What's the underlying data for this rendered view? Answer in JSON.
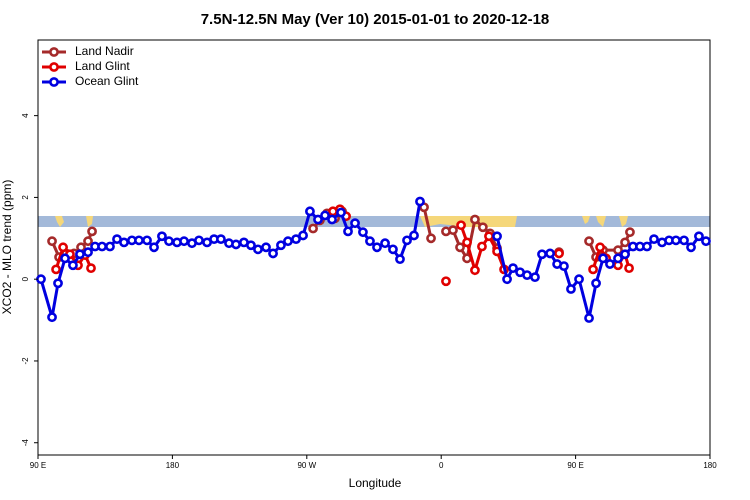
{
  "chart_data": {
    "type": "line",
    "title": "7.5N-12.5N May (Ver 10)   2015-01-01 to 2020-12-18",
    "x_label": "Longitude",
    "y_label": "XCO2 - MLO trend (ppm)",
    "xlim": [
      90,
      540
    ],
    "ylim": [
      -4.3,
      5.85
    ],
    "xticks": [
      {
        "value": 90,
        "label": "90 E"
      },
      180,
      {
        "value": 270,
        "label": "90 W"
      },
      {
        "value": 360,
        "label": "0"
      },
      {
        "value": 450,
        "label": "90 E"
      },
      {
        "value": 540,
        "label": "180"
      }
    ],
    "yticks": [
      -4,
      -2,
      0,
      2,
      4
    ],
    "legend": "top-left",
    "series": [
      {
        "name": "Land Nadir",
        "color": "#a52a2a",
        "x": [
          99.4,
          104.1,
          108.8,
          114.1,
          118.8,
          123.5,
          126.2,
          null,
          274.2,
          278.8,
          283.5,
          288.9,
          293.6,
          null,
          348.5,
          353.2,
          null,
          363.2,
          367.9,
          372.6,
          377.3,
          382.6,
          387.9,
          392.7,
          397.4,
          null,
          438.9,
          null,
          459.0,
          463.7,
          468.4,
          478.4,
          483.1,
          486.4
        ],
        "values": [
          0.93,
          0.54,
          0.63,
          0.63,
          0.78,
          0.93,
          1.17,
          null,
          1.24,
          1.44,
          1.61,
          1.49,
          1.66,
          null,
          1.76,
          1.0,
          null,
          1.17,
          1.2,
          0.78,
          0.51,
          1.46,
          1.27,
          1.12,
          0.76,
          null,
          0.66,
          null,
          0.93,
          0.54,
          0.71,
          0.71,
          0.9,
          1.15
        ]
      },
      {
        "name": "Land Glint",
        "color": "#e00000",
        "x": [
          102.1,
          106.8,
          111.4,
          116.8,
          121.5,
          125.5,
          null,
          287.5,
          292.2,
          296.3,
          null,
          363.2,
          null,
          373.3,
          377.3,
          382.6,
          387.3,
          392.0,
          397.4,
          402.1,
          null,
          438.9,
          null,
          461.7,
          466.4,
          470.4,
          478.4,
          483.1,
          485.8
        ],
        "values": [
          0.24,
          0.78,
          0.61,
          0.34,
          0.59,
          0.27,
          null,
          1.66,
          1.71,
          1.54,
          null,
          -0.05,
          null,
          1.32,
          0.9,
          0.22,
          0.8,
          1.05,
          0.68,
          0.24,
          null,
          0.63,
          null,
          0.24,
          0.78,
          0.51,
          0.34,
          0.61,
          0.27
        ]
      },
      {
        "name": "Ocean Glint",
        "color": "#0000e0",
        "x": [
          92.0,
          99.4,
          103.4,
          108.1,
          113.4,
          118.1,
          123.5,
          128.2,
          132.9,
          138.2,
          142.9,
          147.6,
          152.9,
          157.6,
          163.0,
          167.7,
          173.0,
          177.7,
          183.1,
          187.8,
          193.1,
          197.8,
          203.2,
          207.9,
          212.5,
          217.9,
          222.6,
          227.9,
          232.6,
          237.3,
          242.7,
          247.4,
          252.7,
          257.4,
          262.8,
          267.5,
          272.1,
          277.5,
          282.2,
          286.9,
          292.9,
          297.6,
          302.3,
          307.6,
          312.3,
          317.0,
          322.4,
          327.7,
          332.4,
          337.1,
          341.8,
          345.8,
          null,
          397.4,
          404.1,
          408.1,
          412.8,
          417.5,
          422.8,
          427.5,
          432.9,
          437.6,
          442.2,
          446.9,
          452.3,
          459.0,
          463.7,
          468.4,
          473.0,
          478.4,
          483.1,
          488.4,
          493.1,
          497.8,
          502.5,
          507.9,
          512.6,
          517.2,
          522.6,
          527.3,
          532.6,
          537.3
        ],
        "values": [
          0.0,
          -0.93,
          -0.1,
          0.51,
          0.34,
          0.61,
          0.66,
          0.8,
          0.8,
          0.8,
          0.98,
          0.9,
          0.95,
          0.95,
          0.95,
          0.78,
          1.05,
          0.93,
          0.9,
          0.93,
          0.88,
          0.95,
          0.9,
          0.98,
          0.98,
          0.88,
          0.85,
          0.9,
          0.83,
          0.73,
          0.78,
          0.63,
          0.83,
          0.93,
          0.98,
          1.07,
          1.66,
          1.46,
          1.56,
          1.46,
          1.63,
          1.17,
          1.37,
          1.15,
          0.93,
          0.78,
          0.88,
          0.73,
          0.49,
          0.95,
          1.07,
          1.9,
          null,
          1.05,
          0.0,
          0.27,
          0.17,
          0.1,
          0.05,
          0.61,
          0.63,
          0.37,
          0.32,
          -0.24,
          0.0,
          -0.95,
          -0.1,
          0.51,
          0.37,
          0.51,
          0.61,
          0.8,
          0.8,
          0.8,
          0.98,
          0.9,
          0.95,
          0.95,
          0.95,
          0.78,
          1.05,
          0.93
        ]
      }
    ]
  }
}
